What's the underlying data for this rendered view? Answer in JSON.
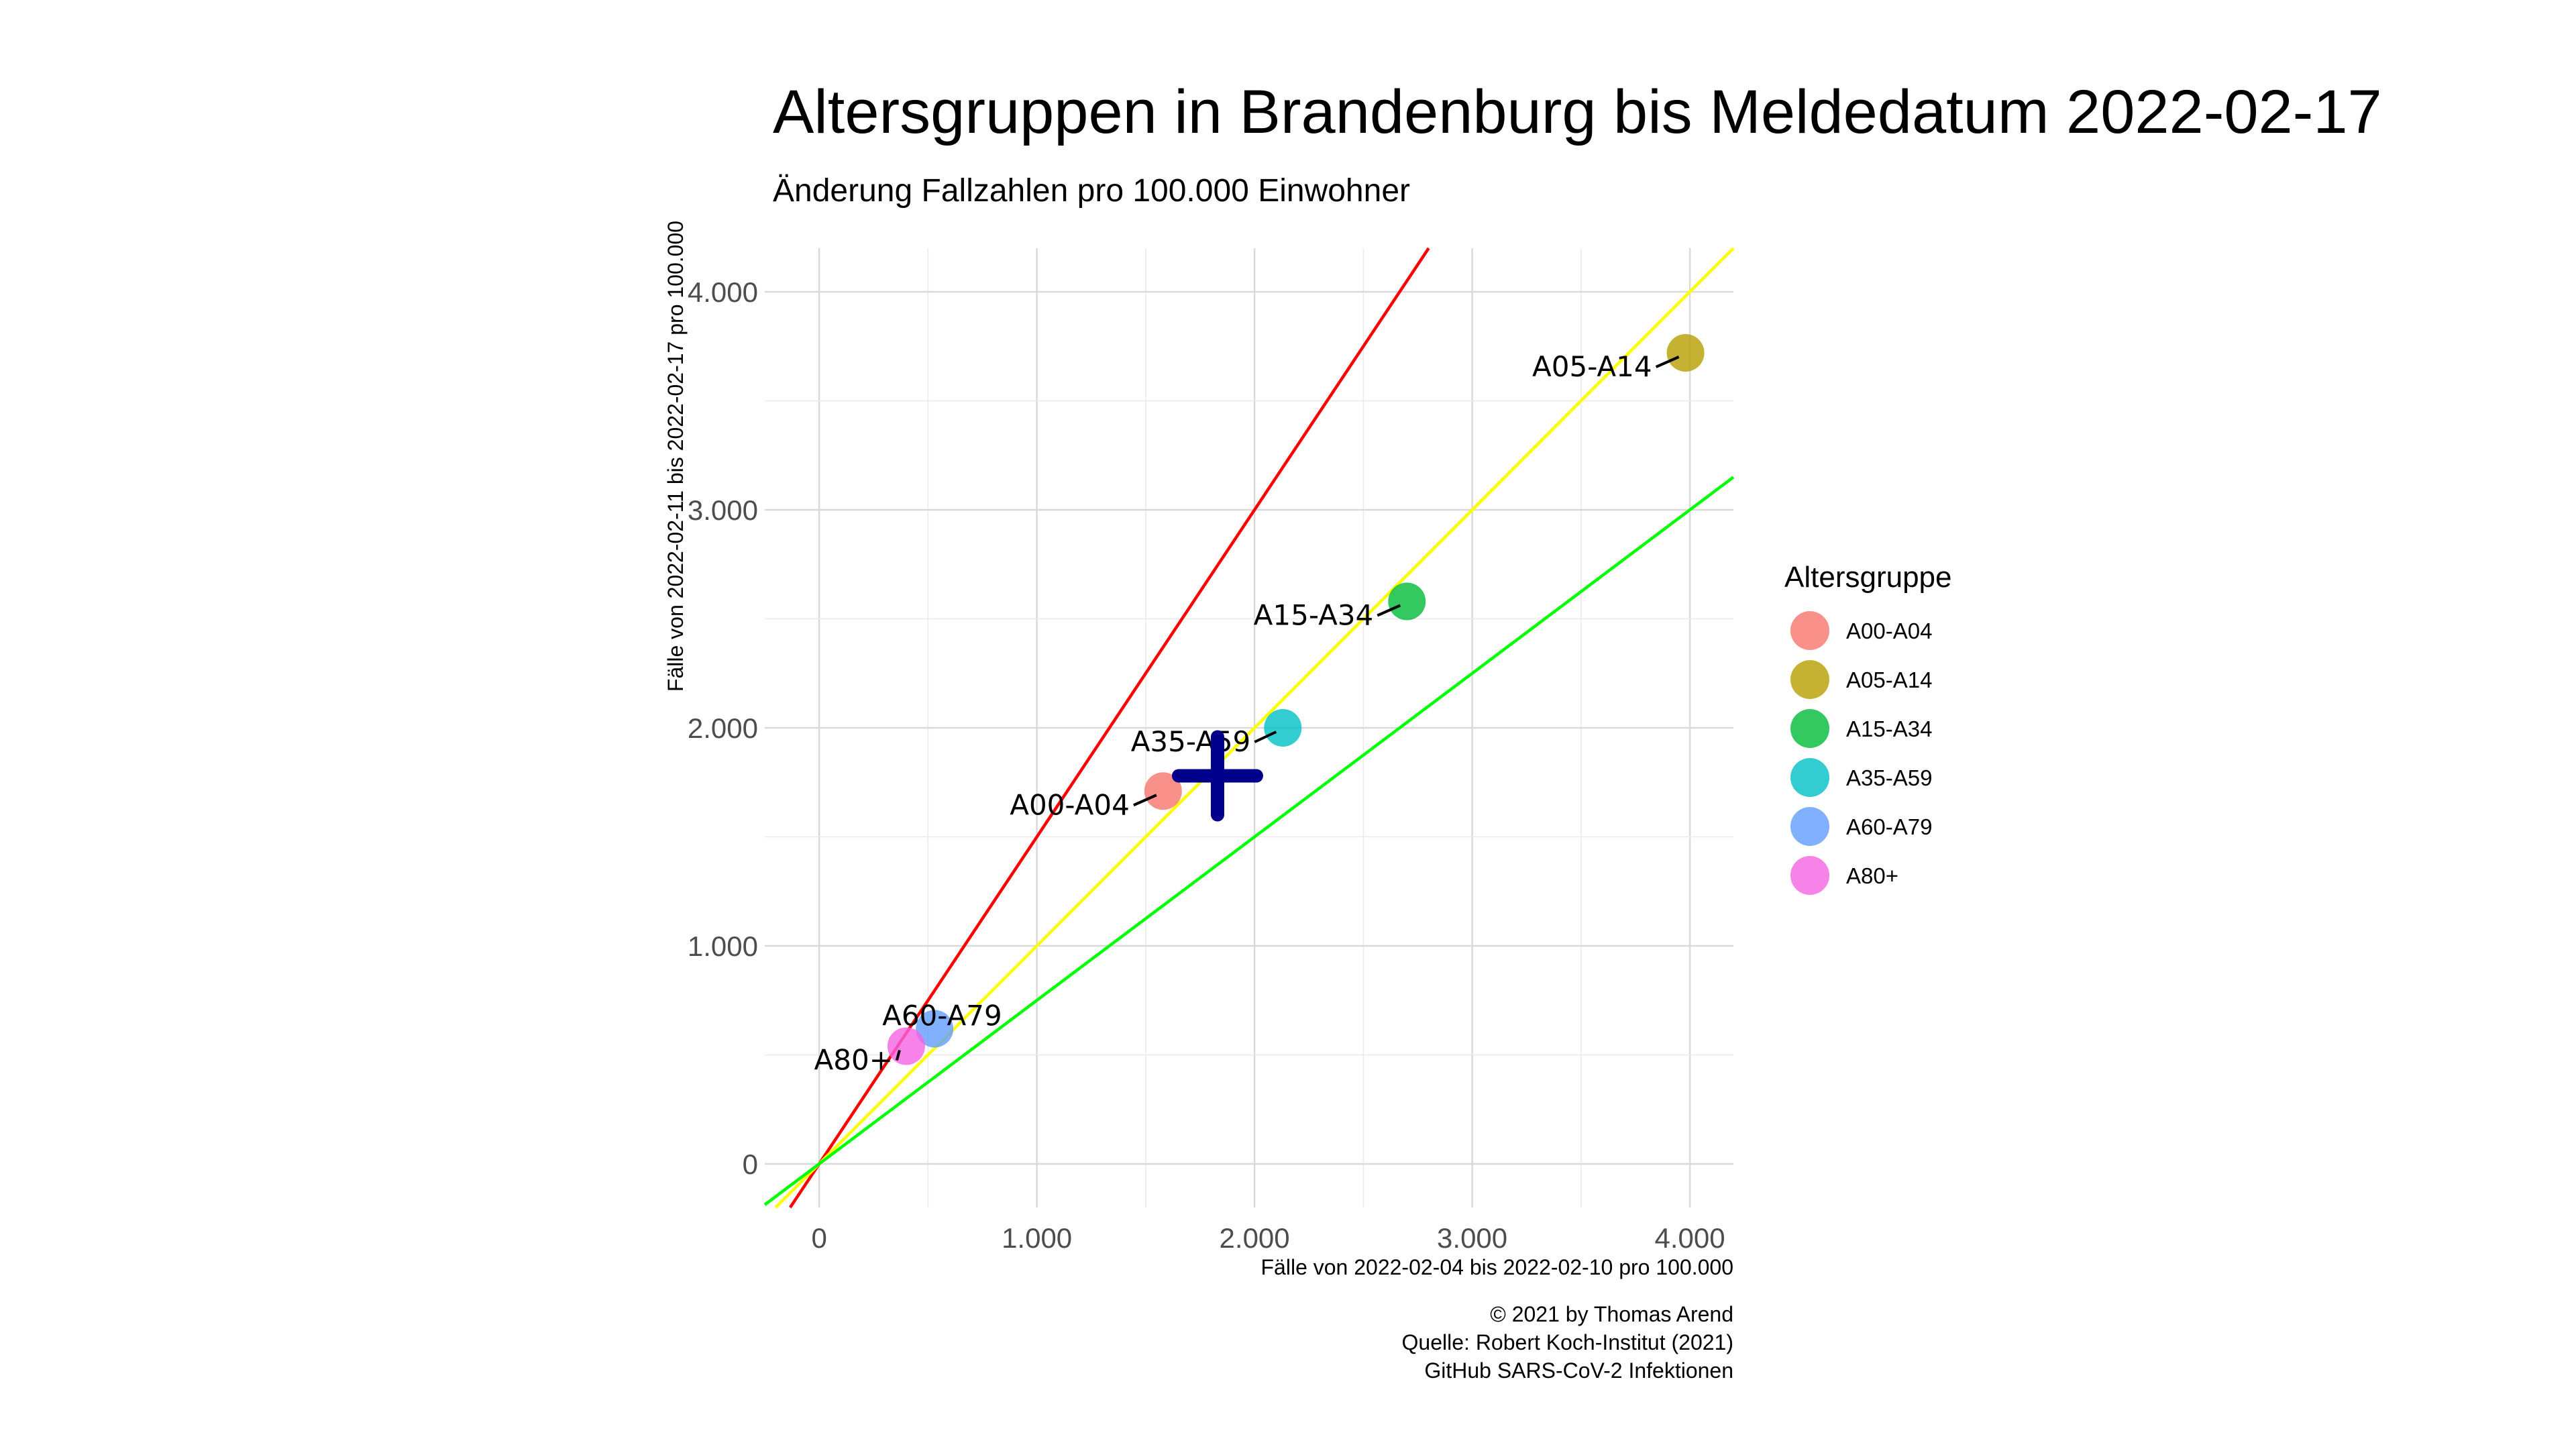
{
  "chart_data": {
    "type": "scatter",
    "title": "Altersgruppen in Brandenburg bis Meldedatum 2022-02-17",
    "subtitle": "Änderung Fallzahlen pro 100.000 Einwohner",
    "xlabel": "Fälle von 2022-02-04 bis 2022-02-10 pro 100.000",
    "ylabel": "Fälle von 2022-02-11 bis 2022-02-17 pro 100.000",
    "xlim": [
      -250,
      4200
    ],
    "ylim": [
      -200,
      4200
    ],
    "x_ticks": [
      0,
      1000,
      2000,
      3000,
      4000
    ],
    "x_tick_labels": [
      "0",
      "1.000",
      "2.000",
      "3.000",
      "4.000"
    ],
    "y_ticks": [
      0,
      1000,
      2000,
      3000,
      4000
    ],
    "y_tick_labels": [
      "0",
      "1.000",
      "2.000",
      "3.000",
      "4.000"
    ],
    "grid": true,
    "legend_title": "Altersgruppe",
    "legend_position": "right",
    "series": [
      {
        "name": "A00-A04",
        "x": 1580,
        "y": 1710,
        "color": "#F8766D"
      },
      {
        "name": "A05-A14",
        "x": 3980,
        "y": 3720,
        "color": "#B79F00"
      },
      {
        "name": "A15-A34",
        "x": 2700,
        "y": 2580,
        "color": "#00BA38"
      },
      {
        "name": "A35-A59",
        "x": 2130,
        "y": 2000,
        "color": "#00BFC4"
      },
      {
        "name": "A60-A79",
        "x": 530,
        "y": 620,
        "color": "#619CFF"
      },
      {
        "name": "A80+",
        "x": 400,
        "y": 540,
        "color": "#F564E3"
      }
    ],
    "mean_marker": {
      "x": 1830,
      "y": 1780,
      "color": "#00008B",
      "symbol": "plus"
    },
    "reference_lines": [
      {
        "slope": 1.5,
        "color": "#FF0000"
      },
      {
        "slope": 1.0,
        "color": "#FFFF00"
      },
      {
        "slope": 0.75,
        "color": "#00FF00"
      }
    ],
    "caption": [
      "© 2021 by Thomas Arend",
      "Quelle: Robert Koch-Institut (2021)",
      "GitHub SARS-CoV-2 Infektionen"
    ]
  }
}
